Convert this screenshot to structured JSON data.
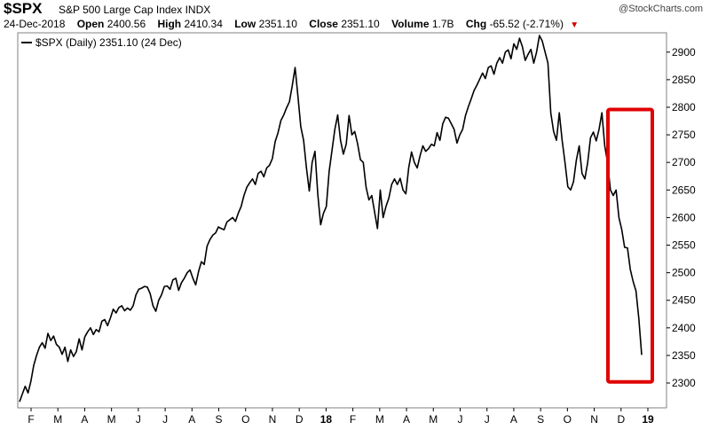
{
  "header": {
    "symbol": "$SPX",
    "description": "S&P 500 Large Cap Index",
    "exchange": "INDX",
    "watermark": "@StockCharts.com",
    "date": "24-Dec-2018",
    "open_label": "Open",
    "open": "2400.56",
    "high_label": "High",
    "high": "2410.34",
    "low_label": "Low",
    "low": "2351.10",
    "close_label": "Close",
    "close": "2351.10",
    "volume_label": "Volume",
    "volume": "1.7B",
    "chg_label": "Chg",
    "chg": "-65.52 (-2.71%)"
  },
  "chart_data": {
    "type": "line",
    "legend": "$SPX (Daily) 2351.10 (24 Dec)",
    "legend_position": "top-left",
    "grid": false,
    "ylim": [
      2255,
      2935
    ],
    "y_ticks": [
      2300,
      2350,
      2400,
      2450,
      2500,
      2550,
      2600,
      2650,
      2700,
      2750,
      2800,
      2850,
      2900
    ],
    "x_ticks": [
      {
        "label": "F",
        "bold": false
      },
      {
        "label": "M",
        "bold": false
      },
      {
        "label": "A",
        "bold": false
      },
      {
        "label": "M",
        "bold": false
      },
      {
        "label": "J",
        "bold": false
      },
      {
        "label": "J",
        "bold": false
      },
      {
        "label": "A",
        "bold": false
      },
      {
        "label": "S",
        "bold": false
      },
      {
        "label": "O",
        "bold": false
      },
      {
        "label": "N",
        "bold": false
      },
      {
        "label": "D",
        "bold": false
      },
      {
        "label": "18",
        "bold": true
      },
      {
        "label": "F",
        "bold": false
      },
      {
        "label": "M",
        "bold": false
      },
      {
        "label": "A",
        "bold": false
      },
      {
        "label": "M",
        "bold": false
      },
      {
        "label": "J",
        "bold": false
      },
      {
        "label": "J",
        "bold": false
      },
      {
        "label": "A",
        "bold": false
      },
      {
        "label": "S",
        "bold": false
      },
      {
        "label": "O",
        "bold": false
      },
      {
        "label": "N",
        "bold": false
      },
      {
        "label": "D",
        "bold": false
      },
      {
        "label": "19",
        "bold": true
      }
    ],
    "series": [
      {
        "color": "#000000",
        "values": [
          2266,
          2280,
          2294,
          2282,
          2303,
          2332,
          2350,
          2365,
          2373,
          2363,
          2390,
          2377,
          2385,
          2370,
          2365,
          2352,
          2365,
          2339,
          2360,
          2348,
          2357,
          2380,
          2360,
          2384,
          2393,
          2400,
          2388,
          2397,
          2393,
          2412,
          2415,
          2404,
          2418,
          2434,
          2427,
          2437,
          2440,
          2431,
          2436,
          2432,
          2440,
          2460,
          2470,
          2472,
          2475,
          2474,
          2462,
          2440,
          2430,
          2450,
          2460,
          2475,
          2476,
          2470,
          2487,
          2490,
          2468,
          2482,
          2490,
          2500,
          2505,
          2490,
          2478,
          2502,
          2520,
          2515,
          2548,
          2560,
          2568,
          2572,
          2583,
          2580,
          2578,
          2592,
          2596,
          2600,
          2593,
          2608,
          2620,
          2640,
          2655,
          2663,
          2670,
          2660,
          2680,
          2684,
          2674,
          2690,
          2695,
          2707,
          2738,
          2754,
          2776,
          2786,
          2799,
          2810,
          2839,
          2872,
          2820,
          2765,
          2740,
          2690,
          2648,
          2700,
          2720,
          2642,
          2587,
          2608,
          2620,
          2684,
          2722,
          2760,
          2786,
          2740,
          2715,
          2733,
          2785,
          2750,
          2756,
          2734,
          2705,
          2700,
          2655,
          2632,
          2640,
          2610,
          2580,
          2650,
          2600,
          2620,
          2635,
          2660,
          2670,
          2660,
          2671,
          2650,
          2643,
          2690,
          2719,
          2700,
          2690,
          2712,
          2730,
          2720,
          2725,
          2733,
          2730,
          2754,
          2740,
          2770,
          2782,
          2780,
          2770,
          2760,
          2735,
          2750,
          2760,
          2785,
          2801,
          2815,
          2830,
          2840,
          2851,
          2862,
          2852,
          2872,
          2875,
          2860,
          2880,
          2890,
          2880,
          2900,
          2904,
          2888,
          2915,
          2905,
          2925,
          2910,
          2885,
          2896,
          2905,
          2880,
          2900,
          2930,
          2920,
          2900,
          2880,
          2790,
          2756,
          2740,
          2790,
          2740,
          2700,
          2656,
          2650,
          2665,
          2704,
          2730,
          2680,
          2670,
          2700,
          2745,
          2755,
          2739,
          2760,
          2790,
          2730,
          2700,
          2650,
          2640,
          2650,
          2600,
          2578,
          2546,
          2545,
          2506,
          2484,
          2467,
          2417,
          2351
        ]
      }
    ],
    "annotation": {
      "type": "rectangle",
      "color": "#e00000",
      "y_range": [
        2302,
        2796
      ]
    }
  }
}
